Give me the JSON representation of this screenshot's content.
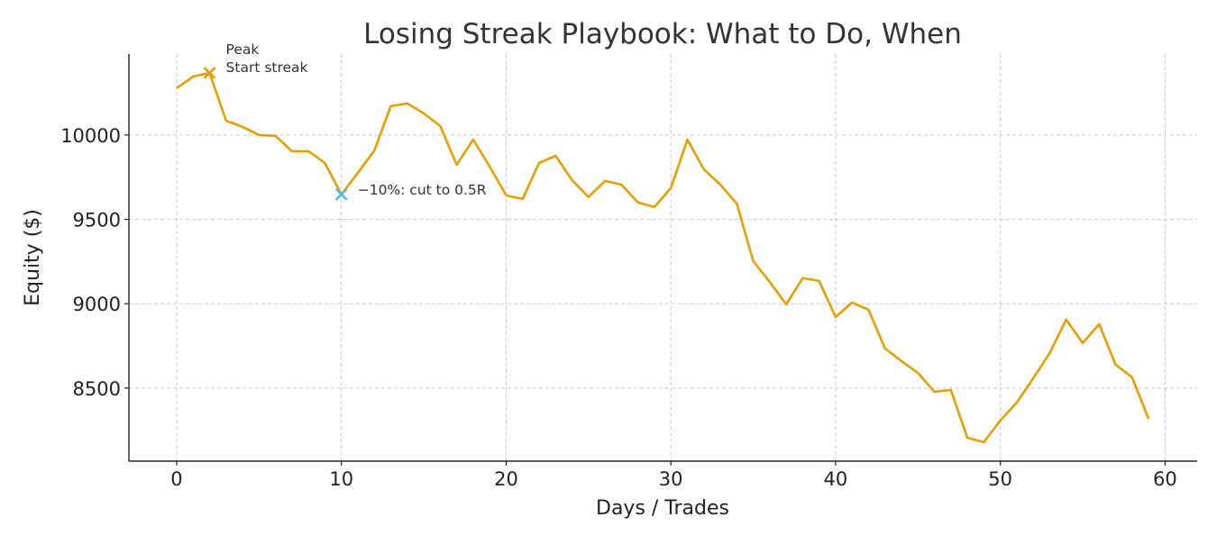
{
  "chart_data": {
    "type": "line",
    "title": "Losing Streak Playbook: What to Do, When",
    "xlabel": "Days / Trades",
    "ylabel": "Equity ($)",
    "xlim": [
      -2.9,
      61.95
    ],
    "ylim": [
      8067,
      10480
    ],
    "xticks": [
      0,
      10,
      20,
      30,
      40,
      50,
      60
    ],
    "yticks": [
      8500,
      9000,
      9500,
      10000
    ],
    "grid": true,
    "line_color": "#E69F00",
    "series": [
      {
        "x": [
          0,
          1,
          2,
          3,
          4,
          5,
          6,
          7,
          8,
          9,
          10,
          11,
          12,
          13,
          14,
          15,
          16,
          17,
          18,
          19,
          20,
          21,
          22,
          23,
          24,
          25,
          26,
          27,
          28,
          29,
          30,
          31,
          32,
          33,
          34,
          35,
          36,
          37,
          38,
          39,
          40,
          41,
          42,
          43,
          44,
          45,
          46,
          47,
          48,
          49,
          50,
          51,
          52,
          53,
          54,
          55,
          56,
          57,
          58,
          59
        ],
        "y": [
          10278,
          10347,
          10368,
          10085,
          10048,
          10000,
          9995,
          9904,
          9904,
          9834,
          9648,
          9776,
          9909,
          10171,
          10187,
          10128,
          10053,
          9824,
          9973,
          9813,
          9642,
          9621,
          9834,
          9877,
          9733,
          9632,
          9728,
          9706,
          9600,
          9573,
          9685,
          9973,
          9797,
          9706,
          9594,
          9253,
          9130,
          8996,
          9151,
          9135,
          8921,
          9007,
          8964,
          8735,
          8660,
          8590,
          8478,
          8489,
          8206,
          8179,
          8308,
          8414,
          8558,
          8708,
          8906,
          8767,
          8879,
          8639,
          8564,
          8318
        ]
      }
    ],
    "annotations": [
      {
        "x": 2,
        "y": 10368,
        "marker": "x",
        "color": "#E69F00",
        "text": "Peak\nStart streak"
      },
      {
        "x": 10,
        "y": 9648,
        "marker": "x",
        "color": "#56B4E9",
        "text": "−10%: cut to 0.5R"
      }
    ]
  }
}
